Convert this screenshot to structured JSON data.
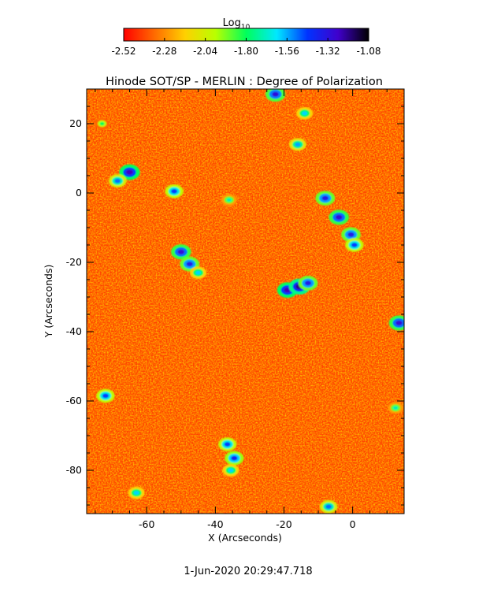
{
  "chart_data": {
    "type": "heatmap",
    "title": "Hinode SOT/SP - MERLIN : Degree of Polarization",
    "xlabel": "X (Arcseconds)",
    "ylabel": "Y (Arcseconds)",
    "xlim": [
      -77.5,
      15
    ],
    "ylim": [
      -92.5,
      30
    ],
    "x_ticks": [
      -60,
      -40,
      -20,
      0
    ],
    "y_ticks": [
      20,
      0,
      -20,
      -40,
      -60,
      -80
    ],
    "colorbar": {
      "title_main": "Log",
      "title_sub": "10",
      "range": [
        -2.52,
        -1.08
      ],
      "ticks": [
        "-2.52",
        "-2.28",
        "-2.04",
        "-1.80",
        "-1.56",
        "-1.32",
        "-1.08"
      ],
      "colormap": [
        "#ff0000",
        "#ff6a00",
        "#ffd000",
        "#b9ff00",
        "#00ff5a",
        "#00e8ff",
        "#0033ff",
        "#4000cc",
        "#000000"
      ]
    },
    "background_level": -2.35,
    "features": [
      {
        "x": -22.5,
        "y": 28.5,
        "level": -1.32
      },
      {
        "x": -14,
        "y": 23,
        "level": -1.6
      },
      {
        "x": -16,
        "y": 14,
        "level": -1.55
      },
      {
        "x": -73,
        "y": 20,
        "level": -1.8
      },
      {
        "x": -65,
        "y": 6,
        "level": -1.25
      },
      {
        "x": -68.5,
        "y": 3.5,
        "level": -1.5
      },
      {
        "x": -52,
        "y": 0.5,
        "level": -1.45
      },
      {
        "x": -36,
        "y": -2,
        "level": -1.7
      },
      {
        "x": -8,
        "y": -1.5,
        "level": -1.35
      },
      {
        "x": -4,
        "y": -7,
        "level": -1.3
      },
      {
        "x": -0.5,
        "y": -12,
        "level": -1.35
      },
      {
        "x": 0.5,
        "y": -15,
        "level": -1.45
      },
      {
        "x": -50,
        "y": -17,
        "level": -1.3
      },
      {
        "x": -47.5,
        "y": -20.5,
        "level": -1.35
      },
      {
        "x": -45,
        "y": -23,
        "level": -1.6
      },
      {
        "x": -19,
        "y": -28,
        "level": -1.25
      },
      {
        "x": -15.5,
        "y": -27,
        "level": -1.2
      },
      {
        "x": -13,
        "y": -26,
        "level": -1.35
      },
      {
        "x": 13.5,
        "y": -37.5,
        "level": -1.3
      },
      {
        "x": -72,
        "y": -58.5,
        "level": -1.45
      },
      {
        "x": -36.5,
        "y": -72.5,
        "level": -1.45
      },
      {
        "x": -34.5,
        "y": -76.5,
        "level": -1.4
      },
      {
        "x": -35.5,
        "y": -80,
        "level": -1.6
      },
      {
        "x": -7,
        "y": -90.5,
        "level": -1.5
      },
      {
        "x": -63,
        "y": -86.5,
        "level": -1.6
      },
      {
        "x": 12.5,
        "y": -62,
        "level": -1.7
      }
    ],
    "grid": false,
    "legend": "colorbar-top"
  },
  "footer": {
    "timestamp": "1-Jun-2020 20:29:47.718"
  }
}
